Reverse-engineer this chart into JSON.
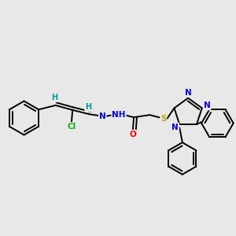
{
  "background_color": "#e8e8e8",
  "bond_color": "#000000",
  "atom_colors": {
    "N": "#0000ee",
    "O": "#ff0000",
    "S": "#bbaa00",
    "Cl": "#00bb00",
    "H": "#009999",
    "C": "#000000"
  },
  "figsize": [
    3.0,
    3.0
  ],
  "dpi": 100
}
